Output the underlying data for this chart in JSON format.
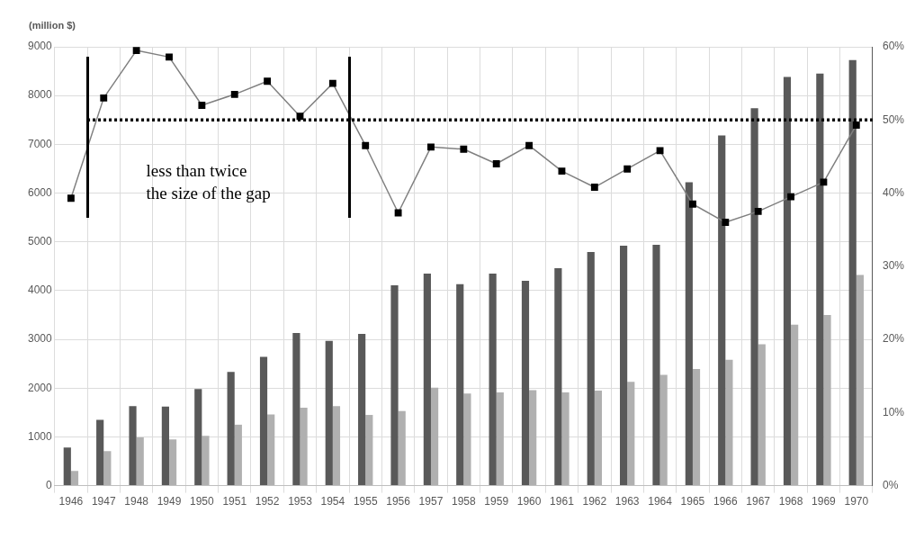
{
  "chart_data": {
    "type": "bar",
    "ylabel": "(million $)",
    "categories": [
      "1946",
      "1947",
      "1948",
      "1949",
      "1950",
      "1951",
      "1952",
      "1953",
      "1954",
      "1955",
      "1956",
      "1957",
      "1958",
      "1959",
      "1960",
      "1961",
      "1962",
      "1963",
      "1964",
      "1965",
      "1966",
      "1967",
      "1968",
      "1969",
      "1970"
    ],
    "series": [
      {
        "color": "#595959",
        "values": [
          780,
          1350,
          1630,
          1620,
          1980,
          2330,
          2640,
          3130,
          2970,
          3110,
          4110,
          4350,
          4130,
          4350,
          4200,
          4460,
          4790,
          4920,
          4940,
          6220,
          7180,
          7740,
          8380,
          8450,
          8730
        ]
      },
      {
        "color": "#b0b0b0",
        "values": [
          300,
          710,
          990,
          950,
          1020,
          1250,
          1460,
          1600,
          1630,
          1450,
          1530,
          2010,
          1890,
          1910,
          1960,
          1910,
          1950,
          2130,
          2270,
          2390,
          2580,
          2900,
          3300,
          3500,
          4320
        ]
      },
      {
        "type": "line",
        "axis": "y2",
        "color": "#808080",
        "marker": "square",
        "values": [
          39.3,
          53,
          59.5,
          58.6,
          52,
          53.5,
          55.3,
          50.5,
          55,
          46.5,
          37.3,
          46.3,
          46,
          44,
          46.5,
          43,
          40.8,
          43.3,
          45.8,
          38.5,
          36,
          37.5,
          39.5,
          41.5,
          49.3
        ]
      }
    ],
    "ylim": [
      0,
      9000
    ],
    "yticks": [
      0,
      1000,
      2000,
      3000,
      4000,
      5000,
      6000,
      7000,
      8000,
      9000
    ],
    "y2lim": [
      0,
      60
    ],
    "y2ticks": [
      {
        "value": 0,
        "label": "0%"
      },
      {
        "value": 10,
        "label": "10%"
      },
      {
        "value": 20,
        "label": "20%"
      },
      {
        "value": 30,
        "label": "30%"
      },
      {
        "value": 40,
        "label": "40%"
      },
      {
        "value": 50,
        "label": "50%"
      },
      {
        "value": 60,
        "label": "60%"
      }
    ],
    "ref_lines": [
      {
        "axis": "y2",
        "value": 50,
        "color": "#000000",
        "line_style": "dotted"
      }
    ],
    "annotations": [
      "less than twice\nthe size of the gap"
    ],
    "grid": true,
    "legend": false
  }
}
